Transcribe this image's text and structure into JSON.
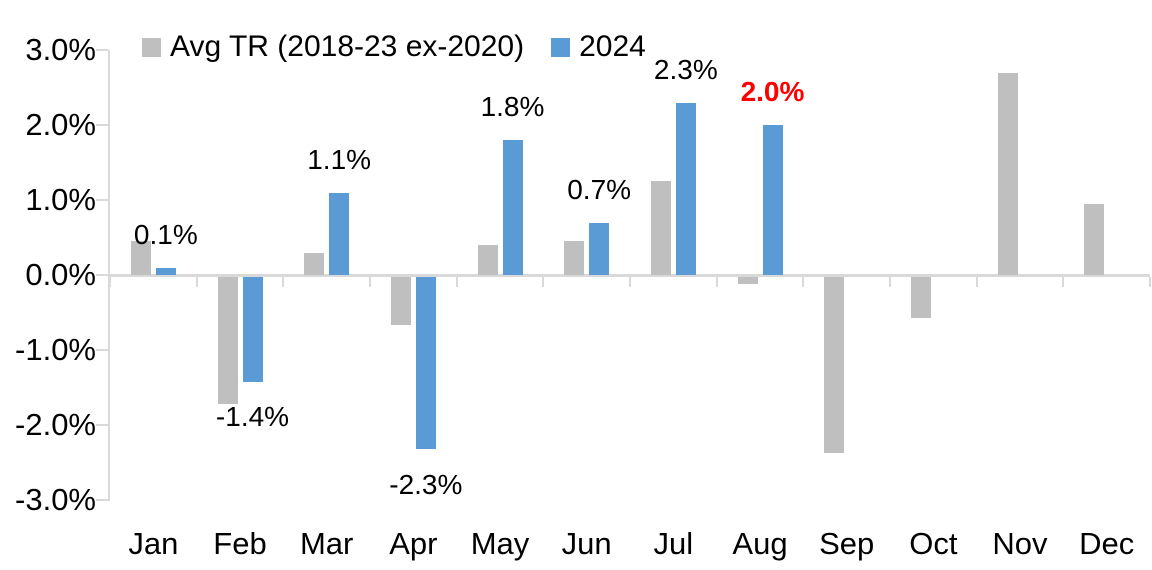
{
  "chart_data": {
    "type": "bar",
    "title": "",
    "xlabel": "",
    "ylabel": "",
    "categories": [
      "Jan",
      "Feb",
      "Mar",
      "Apr",
      "May",
      "Jun",
      "Jul",
      "Aug",
      "Sep",
      "Oct",
      "Nov",
      "Dec"
    ],
    "series": [
      {
        "name": "Avg TR (2018-23 ex-2020)",
        "color": "#BFBFBF",
        "values": [
          0.45,
          -1.7,
          0.3,
          -0.65,
          0.4,
          0.45,
          1.25,
          -0.1,
          -2.35,
          -0.55,
          2.7,
          0.95
        ]
      },
      {
        "name": "2024",
        "color": "#5B9BD5",
        "values": [
          0.1,
          -1.4,
          1.1,
          -2.3,
          1.8,
          0.7,
          2.3,
          2.0,
          null,
          null,
          null,
          null
        ],
        "data_labels": [
          "0.1%",
          "-1.4%",
          "1.1%",
          "-2.3%",
          "1.8%",
          "0.7%",
          "2.3%",
          "2.0%",
          "",
          "",
          "",
          ""
        ],
        "highlight_index": 7
      }
    ],
    "ylim": [
      -3,
      3
    ],
    "ytick_step": 1,
    "yticks": [
      {
        "value": 3,
        "label": "3.0%"
      },
      {
        "value": 2,
        "label": "2.0%"
      },
      {
        "value": 1,
        "label": "1.0%"
      },
      {
        "value": 0,
        "label": "0.0%"
      },
      {
        "value": -1,
        "label": "-1.0%"
      },
      {
        "value": -2,
        "label": "-2.0%"
      },
      {
        "value": -3,
        "label": "-3.0%"
      }
    ],
    "grid": false,
    "legend_position": "top",
    "colors": {
      "axis": "#D9D9D9",
      "text": "#000000",
      "highlight": "#FF0000",
      "background": "#FFFFFF"
    }
  }
}
